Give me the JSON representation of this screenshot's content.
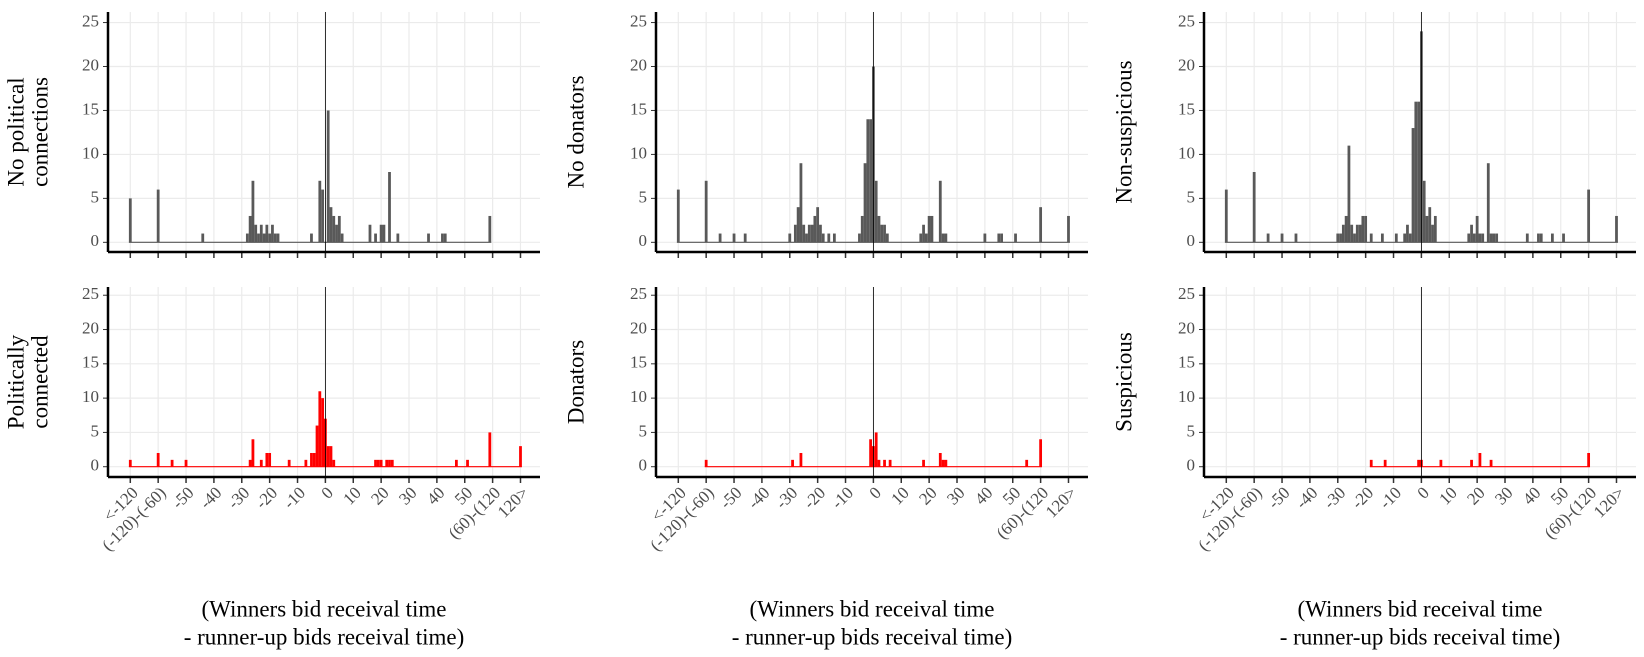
{
  "chart_data": [
    {
      "type": "bar",
      "ylabel": [
        "No political",
        "connections"
      ],
      "color": "#595959",
      "grid": true,
      "vline": 0,
      "x": [
        -70,
        -60,
        -44,
        -28,
        -27,
        -26,
        -25,
        -24,
        -23,
        -22,
        -21,
        -20,
        -19,
        -18,
        -17,
        -5,
        -2,
        -1,
        1,
        2,
        3,
        4,
        5,
        6,
        16,
        18,
        20,
        21,
        23,
        26,
        37,
        42,
        43,
        59
      ],
      "values": [
        5,
        6,
        1,
        1,
        3,
        7,
        2,
        1,
        2,
        1,
        2,
        1,
        2,
        1,
        1,
        1,
        7,
        6,
        15,
        4,
        3,
        2,
        3,
        1,
        2,
        1,
        2,
        2,
        8,
        1,
        1,
        1,
        1,
        3
      ],
      "xlim": [
        -78,
        77
      ],
      "ylim": [
        -1.1,
        26.2
      ],
      "yticks": [
        0,
        5,
        10,
        15,
        20,
        25
      ],
      "xticks": [
        {
          "value": -70,
          "label": "<-120"
        },
        {
          "value": -60,
          "label": "(-120)-(-60)"
        },
        -50,
        -40,
        -30,
        -20,
        -10,
        0,
        10,
        20,
        30,
        40,
        50,
        {
          "value": 60,
          "label": "(60)-(120"
        },
        {
          "value": 70,
          "label": "120>"
        }
      ]
    },
    {
      "type": "bar",
      "ylabel": [
        "Politically",
        "connected"
      ],
      "color": "#ff0000",
      "grid": true,
      "vline": 0,
      "xlabel": [
        "(Winners bid receival time",
        "- runner-up bids receival time)"
      ],
      "x": [
        -70,
        -60,
        -55,
        -50,
        -27,
        -26,
        -23,
        -21,
        -20,
        -13,
        -7,
        -5,
        -4,
        -3,
        -2,
        -1,
        0,
        1,
        2,
        3,
        18,
        19,
        20,
        22,
        23,
        24,
        47,
        51,
        59,
        70
      ],
      "values": [
        1,
        2,
        1,
        1,
        1,
        4,
        1,
        2,
        2,
        1,
        1,
        2,
        2,
        6,
        11,
        10,
        7,
        3,
        3,
        1,
        1,
        1,
        1,
        1,
        1,
        1,
        1,
        1,
        5,
        3
      ],
      "xlim": [
        -78,
        77
      ],
      "ylim": [
        -1.5,
        26.2
      ],
      "yticks": [
        0,
        5,
        10,
        15,
        20,
        25
      ],
      "xticks": [
        {
          "value": -70,
          "label": "<-120"
        },
        {
          "value": -60,
          "label": "(-120)-(-60)"
        },
        -50,
        -40,
        -30,
        -20,
        -10,
        0,
        10,
        20,
        30,
        40,
        50,
        {
          "value": 60,
          "label": "(60)-(120"
        },
        {
          "value": 70,
          "label": "120>"
        }
      ]
    },
    {
      "type": "bar",
      "ylabel": [
        "No donators"
      ],
      "color": "#595959",
      "grid": true,
      "vline": 0,
      "x": [
        -70,
        -60,
        -55,
        -50,
        -46,
        -30,
        -28,
        -27,
        -26,
        -25,
        -24,
        -23,
        -22,
        -21,
        -20,
        -19,
        -18,
        -16,
        -14,
        -5,
        -4,
        -3,
        -2,
        -1,
        0,
        1,
        2,
        3,
        4,
        5,
        17,
        18,
        19,
        20,
        21,
        24,
        25,
        26,
        40,
        45,
        46,
        51,
        60,
        70
      ],
      "values": [
        6,
        7,
        1,
        1,
        1,
        1,
        2,
        4,
        9,
        2,
        1,
        2,
        2,
        3,
        4,
        2,
        1,
        1,
        1,
        1,
        3,
        9,
        14,
        14,
        20,
        7,
        3,
        2,
        2,
        1,
        1,
        2,
        1,
        3,
        3,
        7,
        1,
        1,
        1,
        1,
        1,
        1,
        4,
        3
      ],
      "xlim": [
        -78,
        77
      ],
      "ylim": [
        -1.1,
        26.2
      ],
      "yticks": [
        0,
        5,
        10,
        15,
        20,
        25
      ],
      "xticks": [
        {
          "value": -70,
          "label": "<-120"
        },
        {
          "value": -60,
          "label": "(-120)-(-60)"
        },
        -50,
        -40,
        -30,
        -20,
        -10,
        0,
        10,
        20,
        30,
        40,
        50,
        {
          "value": 60,
          "label": "(60)-(120"
        },
        {
          "value": 70,
          "label": "120>"
        }
      ]
    },
    {
      "type": "bar",
      "ylabel": [
        "Donators"
      ],
      "color": "#ff0000",
      "grid": true,
      "vline": 0,
      "xlabel": [
        "(Winners bid receival time",
        "- runner-up bids receival time)"
      ],
      "x": [
        -60,
        -29,
        -26,
        -1,
        0,
        1,
        2,
        4,
        6,
        18,
        24,
        25,
        26,
        55,
        60
      ],
      "values": [
        1,
        1,
        2,
        4,
        3,
        5,
        1,
        1,
        1,
        1,
        2,
        1,
        1,
        1,
        4
      ],
      "xlim": [
        -78,
        77
      ],
      "ylim": [
        -1.5,
        26.2
      ],
      "yticks": [
        0,
        5,
        10,
        15,
        20,
        25
      ],
      "xticks": [
        {
          "value": -70,
          "label": "<-120"
        },
        {
          "value": -60,
          "label": "(-120)-(-60)"
        },
        -50,
        -40,
        -30,
        -20,
        -10,
        0,
        10,
        20,
        30,
        40,
        50,
        {
          "value": 60,
          "label": "(60)-(120"
        },
        {
          "value": 70,
          "label": "120>"
        }
      ]
    },
    {
      "type": "bar",
      "ylabel": [
        "Non-suspicious"
      ],
      "color": "#595959",
      "grid": true,
      "vline": 0,
      "x": [
        -70,
        -60,
        -55,
        -50,
        -45,
        -30,
        -29,
        -28,
        -27,
        -26,
        -25,
        -24,
        -23,
        -22,
        -21,
        -20,
        -18,
        -14,
        -9,
        -5,
        -4,
        -3,
        -2,
        -1,
        0,
        1,
        2,
        3,
        4,
        5,
        -6,
        17,
        18,
        19,
        20,
        21,
        22,
        24,
        25,
        26,
        27,
        38,
        42,
        43,
        47,
        51,
        60,
        70
      ],
      "values": [
        6,
        8,
        1,
        1,
        1,
        1,
        1,
        2,
        3,
        11,
        2,
        1,
        2,
        2,
        3,
        3,
        1,
        1,
        1,
        2,
        1,
        13,
        16,
        16,
        24,
        7,
        3,
        4,
        2,
        3,
        1,
        1,
        2,
        1,
        3,
        1,
        1,
        9,
        1,
        1,
        1,
        1,
        1,
        1,
        1,
        1,
        6,
        3
      ],
      "xlim": [
        -78,
        77
      ],
      "ylim": [
        -1.1,
        26.2
      ],
      "yticks": [
        0,
        5,
        10,
        15,
        20,
        25
      ],
      "xticks": [
        {
          "value": -70,
          "label": "<-120"
        },
        {
          "value": -60,
          "label": "(-120)-(-60)"
        },
        -50,
        -40,
        -30,
        -20,
        -10,
        0,
        10,
        20,
        30,
        40,
        50,
        {
          "value": 60,
          "label": "(60)-(120"
        },
        {
          "value": 70,
          "label": "120>"
        }
      ]
    },
    {
      "type": "bar",
      "ylabel": [
        "Suspicious"
      ],
      "color": "#ff0000",
      "grid": true,
      "vline": 0,
      "xlabel": [
        "(Winners bid receival time",
        "- runner-up bids receival time)"
      ],
      "x": [
        -18,
        -13,
        -1,
        0,
        7,
        18,
        21,
        25,
        60
      ],
      "values": [
        1,
        1,
        1,
        1,
        1,
        1,
        2,
        1,
        2
      ],
      "xlim": [
        -78,
        77
      ],
      "ylim": [
        -1.5,
        26.2
      ],
      "yticks": [
        0,
        5,
        10,
        15,
        20,
        25
      ],
      "xticks": [
        {
          "value": -70,
          "label": "<-120"
        },
        {
          "value": -60,
          "label": "(-120)-(-60)"
        },
        -50,
        -40,
        -30,
        -20,
        -10,
        0,
        10,
        20,
        30,
        40,
        50,
        {
          "value": 60,
          "label": "(60)-(120"
        },
        {
          "value": 70,
          "label": "120>"
        }
      ]
    }
  ]
}
